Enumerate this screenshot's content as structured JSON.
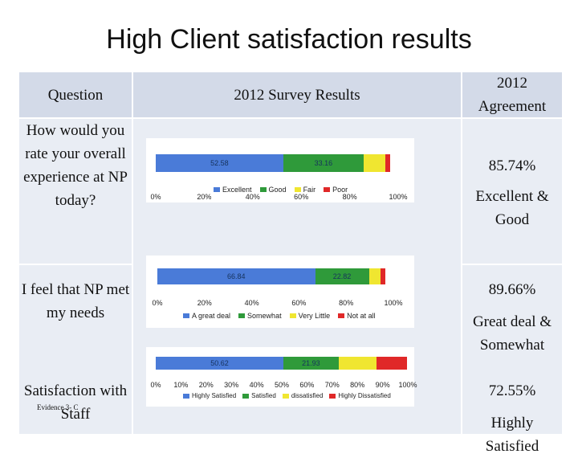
{
  "title": "High Client satisfaction results",
  "headers": {
    "question": "Question",
    "results": "2012 Survey Results",
    "agreement": "2012 Agreement"
  },
  "rows": [
    {
      "question": "How would you rate your overall experience at NP today?",
      "percent": "85.74%",
      "agreement_label": "Excellent & Good"
    },
    {
      "question": "I feel that NP met my needs",
      "percent": "89.66%",
      "agreement_label": "Great deal & Somewhat"
    },
    {
      "question": "Satisfaction with Staff",
      "percent": "72.55%",
      "agreement_label": "Highly Satisfied",
      "footnote": "Evidence 3- C"
    }
  ],
  "chart_data": [
    {
      "type": "bar",
      "orientation": "horizontal-stacked",
      "series": [
        {
          "name": "Excellent",
          "value": 52.58,
          "label": "52.58",
          "color": "#4a7bd8"
        },
        {
          "name": "Good",
          "value": 33.16,
          "label": "33.16",
          "color": "#2f9a3a"
        },
        {
          "name": "Fair",
          "value": 9.0,
          "label": "",
          "color": "#f0e630"
        },
        {
          "name": "Poor",
          "value": 2.0,
          "label": "",
          "color": "#e02828"
        }
      ],
      "xticks": [
        "0%",
        "20%",
        "40%",
        "60%",
        "80%",
        "100%"
      ]
    },
    {
      "type": "bar",
      "orientation": "horizontal-stacked",
      "series": [
        {
          "name": "A great deal",
          "value": 66.84,
          "label": "66.84",
          "color": "#4a7bd8"
        },
        {
          "name": "Somewhat",
          "value": 22.82,
          "label": "22.82",
          "color": "#2f9a3a"
        },
        {
          "name": "Very Little",
          "value": 5.0,
          "label": "",
          "color": "#f0e630"
        },
        {
          "name": "Not at all",
          "value": 2.0,
          "label": "",
          "color": "#e02828"
        }
      ],
      "xticks": [
        "0%",
        "20%",
        "40%",
        "60%",
        "80%",
        "100%"
      ]
    },
    {
      "type": "bar",
      "orientation": "horizontal-stacked",
      "series": [
        {
          "name": "Highly Satisfied",
          "value": 50.62,
          "label": "50.62",
          "color": "#4a7bd8"
        },
        {
          "name": "Satisfied",
          "value": 21.93,
          "label": "21.93",
          "color": "#2f9a3a"
        },
        {
          "name": "dissatisfied",
          "value": 15.0,
          "label": "",
          "color": "#f0e630"
        },
        {
          "name": "Highly Dissatisfied",
          "value": 12.0,
          "label": "",
          "color": "#e02828"
        }
      ],
      "xticks": [
        "0%",
        "10%",
        "20%",
        "30%",
        "40%",
        "50%",
        "60%",
        "70%",
        "80%",
        "90%",
        "100%"
      ]
    }
  ]
}
